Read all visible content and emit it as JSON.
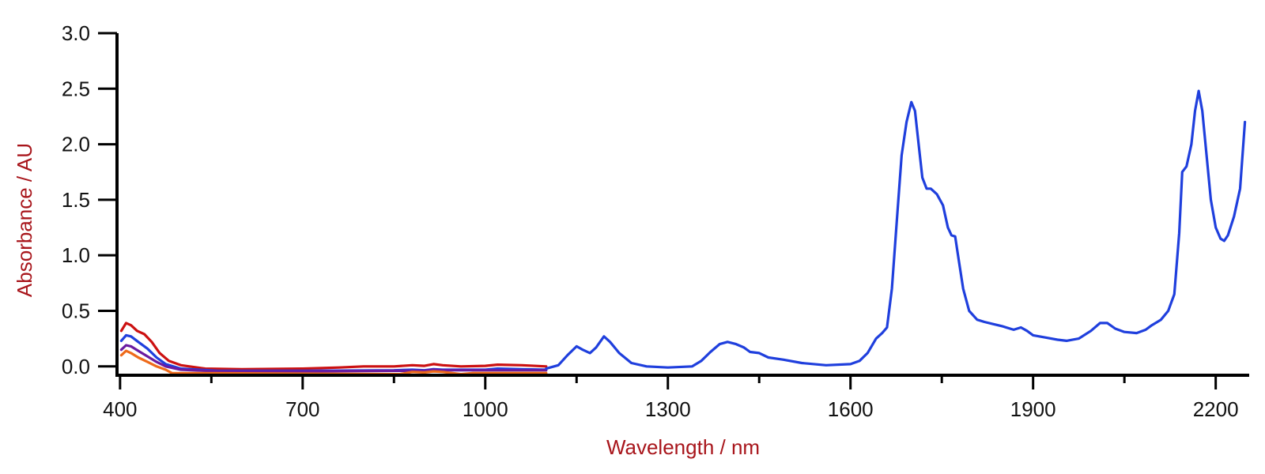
{
  "chart_data": {
    "type": "line",
    "title": "",
    "xlabel": "Wavelength / nm",
    "ylabel": "Absorbance / AU",
    "xlim": [
      395,
      2255
    ],
    "ylim": [
      -0.08,
      3.0
    ],
    "x_ticks": [
      400,
      700,
      1000,
      1300,
      1600,
      1900,
      2200
    ],
    "x_tick_labels": [
      "400",
      "700",
      "1000",
      "1300",
      "1600",
      "1900",
      "2200"
    ],
    "x_minor_ticks": [
      550,
      850,
      1150,
      1450,
      1750,
      2050
    ],
    "y_ticks": [
      0.0,
      0.5,
      1.0,
      1.5,
      2.0,
      2.5,
      3.0
    ],
    "y_tick_labels": [
      "0.0",
      "0.5",
      "1.0",
      "1.5",
      "2.0",
      "2.5",
      "3.0"
    ],
    "grid": false,
    "legend": "none",
    "series": [
      {
        "color": "#cc1111",
        "points": [
          [
            402,
            0.32
          ],
          [
            410,
            0.39
          ],
          [
            418,
            0.37
          ],
          [
            428,
            0.32
          ],
          [
            440,
            0.29
          ],
          [
            452,
            0.22
          ],
          [
            465,
            0.12
          ],
          [
            480,
            0.05
          ],
          [
            500,
            0.01
          ],
          [
            540,
            -0.02
          ],
          [
            600,
            -0.025
          ],
          [
            700,
            -0.02
          ],
          [
            760,
            -0.01
          ],
          [
            800,
            0.0
          ],
          [
            850,
            0.0
          ],
          [
            880,
            0.01
          ],
          [
            900,
            0.005
          ],
          [
            915,
            0.02
          ],
          [
            930,
            0.01
          ],
          [
            960,
            0.0
          ],
          [
            1000,
            0.005
          ],
          [
            1020,
            0.015
          ],
          [
            1060,
            0.01
          ],
          [
            1100,
            0.0
          ]
        ]
      },
      {
        "color": "#1f3fdd",
        "points": [
          [
            402,
            0.23
          ],
          [
            410,
            0.28
          ],
          [
            418,
            0.27
          ],
          [
            430,
            0.22
          ],
          [
            445,
            0.16
          ],
          [
            460,
            0.08
          ],
          [
            475,
            0.02
          ],
          [
            500,
            -0.02
          ],
          [
            560,
            -0.04
          ],
          [
            700,
            -0.04
          ],
          [
            850,
            -0.035
          ],
          [
            880,
            -0.03
          ],
          [
            900,
            -0.035
          ],
          [
            915,
            -0.025
          ],
          [
            930,
            -0.03
          ],
          [
            1000,
            -0.03
          ],
          [
            1020,
            -0.02
          ],
          [
            1060,
            -0.025
          ],
          [
            1100,
            -0.03
          ]
        ]
      },
      {
        "color": "#6a1aa0",
        "points": [
          [
            402,
            0.15
          ],
          [
            410,
            0.19
          ],
          [
            418,
            0.18
          ],
          [
            430,
            0.14
          ],
          [
            445,
            0.09
          ],
          [
            460,
            0.04
          ],
          [
            475,
            0.0
          ],
          [
            500,
            -0.03
          ],
          [
            560,
            -0.045
          ],
          [
            700,
            -0.045
          ],
          [
            850,
            -0.04
          ],
          [
            900,
            -0.04
          ],
          [
            915,
            -0.03
          ],
          [
            930,
            -0.035
          ],
          [
            1000,
            -0.035
          ],
          [
            1100,
            -0.035
          ]
        ]
      },
      {
        "color": "#ee6a1a",
        "points": [
          [
            402,
            0.1
          ],
          [
            410,
            0.14
          ],
          [
            418,
            0.12
          ],
          [
            430,
            0.08
          ],
          [
            445,
            0.04
          ],
          [
            460,
            0.0
          ],
          [
            475,
            -0.03
          ],
          [
            485,
            -0.06
          ],
          [
            860,
            -0.07
          ],
          [
            880,
            -0.05
          ],
          [
            900,
            -0.055
          ],
          [
            915,
            -0.045
          ],
          [
            930,
            -0.05
          ],
          [
            960,
            -0.07
          ],
          [
            980,
            -0.06
          ],
          [
            1100,
            -0.06
          ]
        ]
      },
      {
        "color": "#1f3fdd",
        "points": [
          [
            1100,
            -0.02
          ],
          [
            1120,
            0.01
          ],
          [
            1135,
            0.1
          ],
          [
            1150,
            0.18
          ],
          [
            1160,
            0.15
          ],
          [
            1172,
            0.12
          ],
          [
            1182,
            0.17
          ],
          [
            1195,
            0.27
          ],
          [
            1205,
            0.22
          ],
          [
            1220,
            0.12
          ],
          [
            1240,
            0.03
          ],
          [
            1265,
            0.0
          ],
          [
            1300,
            -0.01
          ],
          [
            1340,
            0.0
          ],
          [
            1355,
            0.05
          ],
          [
            1370,
            0.13
          ],
          [
            1385,
            0.2
          ],
          [
            1398,
            0.22
          ],
          [
            1412,
            0.2
          ],
          [
            1425,
            0.17
          ],
          [
            1435,
            0.13
          ],
          [
            1450,
            0.12
          ],
          [
            1465,
            0.08
          ],
          [
            1490,
            0.06
          ],
          [
            1520,
            0.03
          ],
          [
            1560,
            0.01
          ],
          [
            1600,
            0.02
          ],
          [
            1615,
            0.05
          ],
          [
            1628,
            0.12
          ],
          [
            1642,
            0.25
          ],
          [
            1652,
            0.3
          ],
          [
            1660,
            0.35
          ],
          [
            1668,
            0.7
          ],
          [
            1676,
            1.3
          ],
          [
            1684,
            1.9
          ],
          [
            1692,
            2.2
          ],
          [
            1700,
            2.38
          ],
          [
            1706,
            2.3
          ],
          [
            1712,
            2.0
          ],
          [
            1718,
            1.7
          ],
          [
            1725,
            1.6
          ],
          [
            1732,
            1.6
          ],
          [
            1742,
            1.55
          ],
          [
            1752,
            1.45
          ],
          [
            1760,
            1.25
          ],
          [
            1766,
            1.18
          ],
          [
            1772,
            1.17
          ],
          [
            1778,
            0.95
          ],
          [
            1785,
            0.7
          ],
          [
            1795,
            0.5
          ],
          [
            1808,
            0.42
          ],
          [
            1820,
            0.4
          ],
          [
            1835,
            0.38
          ],
          [
            1850,
            0.36
          ],
          [
            1868,
            0.33
          ],
          [
            1880,
            0.35
          ],
          [
            1890,
            0.32
          ],
          [
            1900,
            0.28
          ],
          [
            1920,
            0.26
          ],
          [
            1940,
            0.24
          ],
          [
            1955,
            0.23
          ],
          [
            1975,
            0.25
          ],
          [
            1995,
            0.32
          ],
          [
            2010,
            0.39
          ],
          [
            2022,
            0.39
          ],
          [
            2035,
            0.34
          ],
          [
            2050,
            0.31
          ],
          [
            2070,
            0.3
          ],
          [
            2085,
            0.33
          ],
          [
            2095,
            0.37
          ],
          [
            2110,
            0.42
          ],
          [
            2122,
            0.5
          ],
          [
            2132,
            0.65
          ],
          [
            2140,
            1.2
          ],
          [
            2145,
            1.75
          ],
          [
            2152,
            1.8
          ],
          [
            2160,
            2.0
          ],
          [
            2166,
            2.3
          ],
          [
            2172,
            2.48
          ],
          [
            2178,
            2.3
          ],
          [
            2185,
            1.9
          ],
          [
            2192,
            1.5
          ],
          [
            2200,
            1.25
          ],
          [
            2208,
            1.15
          ],
          [
            2214,
            1.13
          ],
          [
            2220,
            1.18
          ],
          [
            2230,
            1.35
          ],
          [
            2240,
            1.6
          ],
          [
            2248,
            2.2
          ]
        ]
      }
    ]
  }
}
